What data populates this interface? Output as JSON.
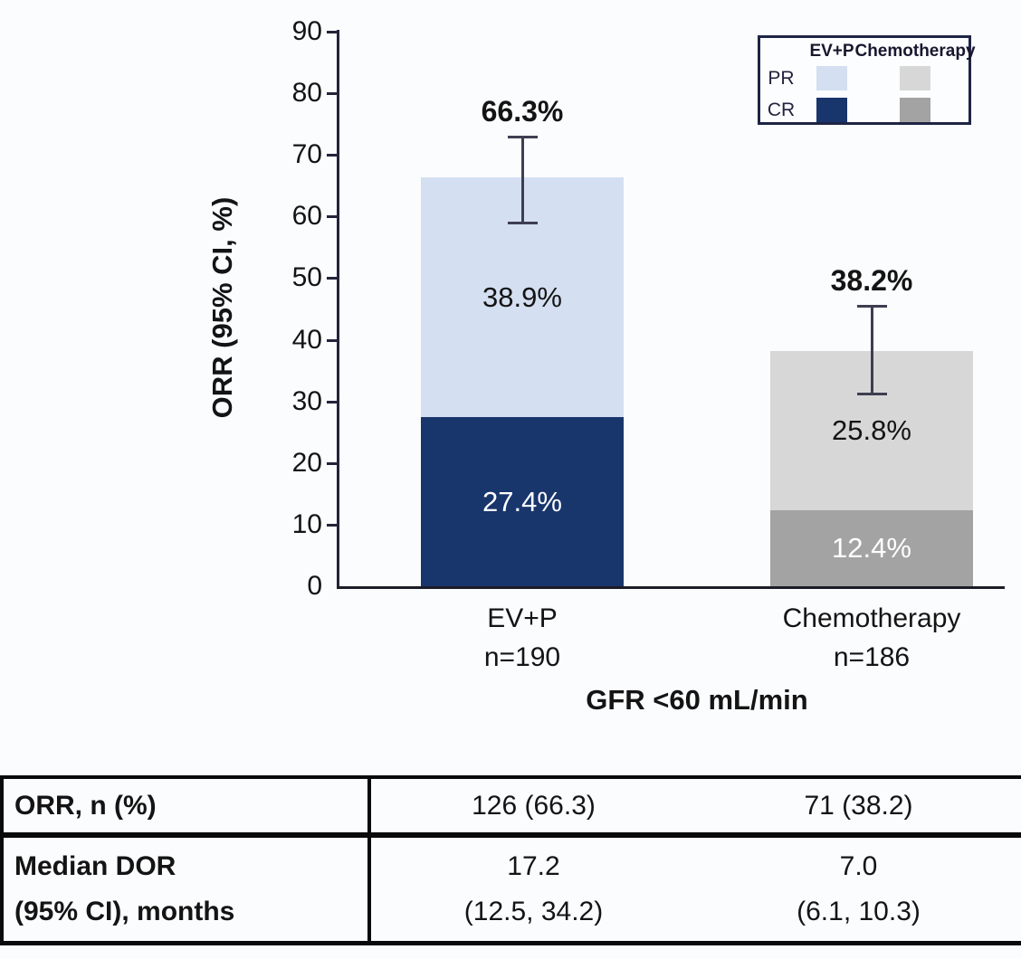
{
  "colors": {
    "evp_pr": "#d4dff2",
    "evp_cr": "#18356c",
    "chemo_pr": "#d7d7d7",
    "chemo_cr": "#a3a3a3",
    "axis": "#23233a",
    "error_bar": "#3e3e52",
    "legend_border": "#1e2445",
    "text_dark": "#141414",
    "text_light": "#ffffff",
    "background": "#fbfcfe"
  },
  "chart_data": {
    "type": "bar",
    "stacked": true,
    "title": "",
    "ylabel": "ORR (95% CI, %)",
    "xlabel": "GFR <60 mL/min",
    "ylim": [
      0,
      90
    ],
    "ytick_step": 10,
    "yticks": [
      0,
      10,
      20,
      30,
      40,
      50,
      60,
      70,
      80,
      90
    ],
    "grid": false,
    "legend_position": "top-right",
    "categories": [
      "EV+P",
      "Chemotherapy"
    ],
    "n_labels": [
      "n=190",
      "n=186"
    ],
    "series": [
      {
        "name": "CR",
        "values": [
          27.4,
          12.4
        ],
        "colors": [
          "#18356c",
          "#a3a3a3"
        ],
        "label_colors": [
          "#ffffff",
          "#ffffff"
        ]
      },
      {
        "name": "PR",
        "values": [
          38.9,
          25.8
        ],
        "colors": [
          "#d4dff2",
          "#d7d7d7"
        ],
        "label_colors": [
          "#141414",
          "#141414"
        ]
      }
    ],
    "totals": [
      66.3,
      38.2
    ],
    "total_labels": [
      "66.3%",
      "38.2%"
    ],
    "segment_labels": [
      [
        "27.4%",
        "38.9%"
      ],
      [
        "12.4%",
        "25.8%"
      ]
    ],
    "error_bars": [
      {
        "low": 59.0,
        "high": 72.9
      },
      {
        "low": 31.2,
        "high": 45.5
      }
    ],
    "legend": {
      "column_headers": [
        "EV+P",
        "Chemotherapy"
      ],
      "row_labels": [
        "PR",
        "CR"
      ],
      "swatches": [
        [
          "#d4dff2",
          "#d7d7d7"
        ],
        [
          "#18356c",
          "#a3a3a3"
        ]
      ]
    }
  },
  "table": {
    "rows": [
      {
        "label_lines": [
          "ORR, n (%)"
        ],
        "col1_lines": [
          "126 (66.3)"
        ],
        "col2_lines": [
          "71 (38.2)"
        ]
      },
      {
        "label_lines": [
          "Median DOR",
          "(95% CI), months"
        ],
        "col1_lines": [
          "17.2",
          "(12.5, 34.2)"
        ],
        "col2_lines": [
          "7.0",
          "(6.1, 10.3)"
        ]
      }
    ]
  }
}
